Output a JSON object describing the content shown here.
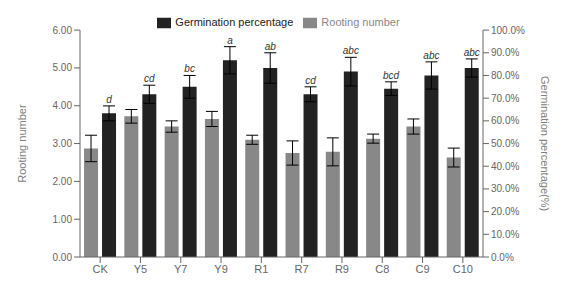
{
  "chart_data": {
    "type": "bar",
    "categories": [
      "CK",
      "Y5",
      "Y7",
      "Y9",
      "R1",
      "R7",
      "R9",
      "C8",
      "C9",
      "C10"
    ],
    "series": [
      {
        "name": "Rooting number",
        "color": "#888888",
        "values": [
          2.87,
          3.72,
          3.45,
          3.65,
          3.1,
          2.75,
          2.78,
          3.13,
          3.45,
          2.63
        ],
        "errors": [
          0.35,
          0.18,
          0.15,
          0.2,
          0.12,
          0.32,
          0.37,
          0.12,
          0.2,
          0.25
        ]
      },
      {
        "name": "Germination percentage",
        "color": "#222222",
        "axis": "y2",
        "values": [
          0.633,
          0.717,
          0.75,
          0.867,
          0.833,
          0.717,
          0.817,
          0.742,
          0.8,
          0.833
        ],
        "errors": [
          0.033,
          0.04,
          0.05,
          0.06,
          0.067,
          0.033,
          0.063,
          0.03,
          0.06,
          0.04
        ],
        "annotations": [
          "d",
          "cd",
          "bc",
          "a",
          "ab",
          "cd",
          "abc",
          "bcd",
          "abc",
          "abc"
        ]
      }
    ],
    "ylabel": "Rooting number",
    "y2label": "Germination percentage(%)",
    "ylim": [
      0,
      6.0
    ],
    "yticks": [
      {
        "value": 0.0,
        "label": "0.00"
      },
      {
        "value": 1.0,
        "label": "1.00"
      },
      {
        "value": 2.0,
        "label": "2.00"
      },
      {
        "value": 3.0,
        "label": "3.00"
      },
      {
        "value": 4.0,
        "label": "4.00"
      },
      {
        "value": 5.0,
        "label": "5.00"
      },
      {
        "value": 6.0,
        "label": "6.00"
      }
    ],
    "y2lim": [
      0,
      1.0
    ],
    "y2ticks": [
      {
        "value": 0.0,
        "label": "0.0%"
      },
      {
        "value": 0.1,
        "label": "10.0%"
      },
      {
        "value": 0.2,
        "label": "20.0%"
      },
      {
        "value": 0.3,
        "label": "30.0%"
      },
      {
        "value": 0.4,
        "label": "40.0%"
      },
      {
        "value": 0.5,
        "label": "50.0%"
      },
      {
        "value": 0.6,
        "label": "60.0%"
      },
      {
        "value": 0.7,
        "label": "70.0%"
      },
      {
        "value": 0.8,
        "label": "80.0%"
      },
      {
        "value": 0.9,
        "label": "90.0%"
      },
      {
        "value": 1.0,
        "label": "100.0%"
      }
    ],
    "grid": false,
    "legend": "top"
  }
}
